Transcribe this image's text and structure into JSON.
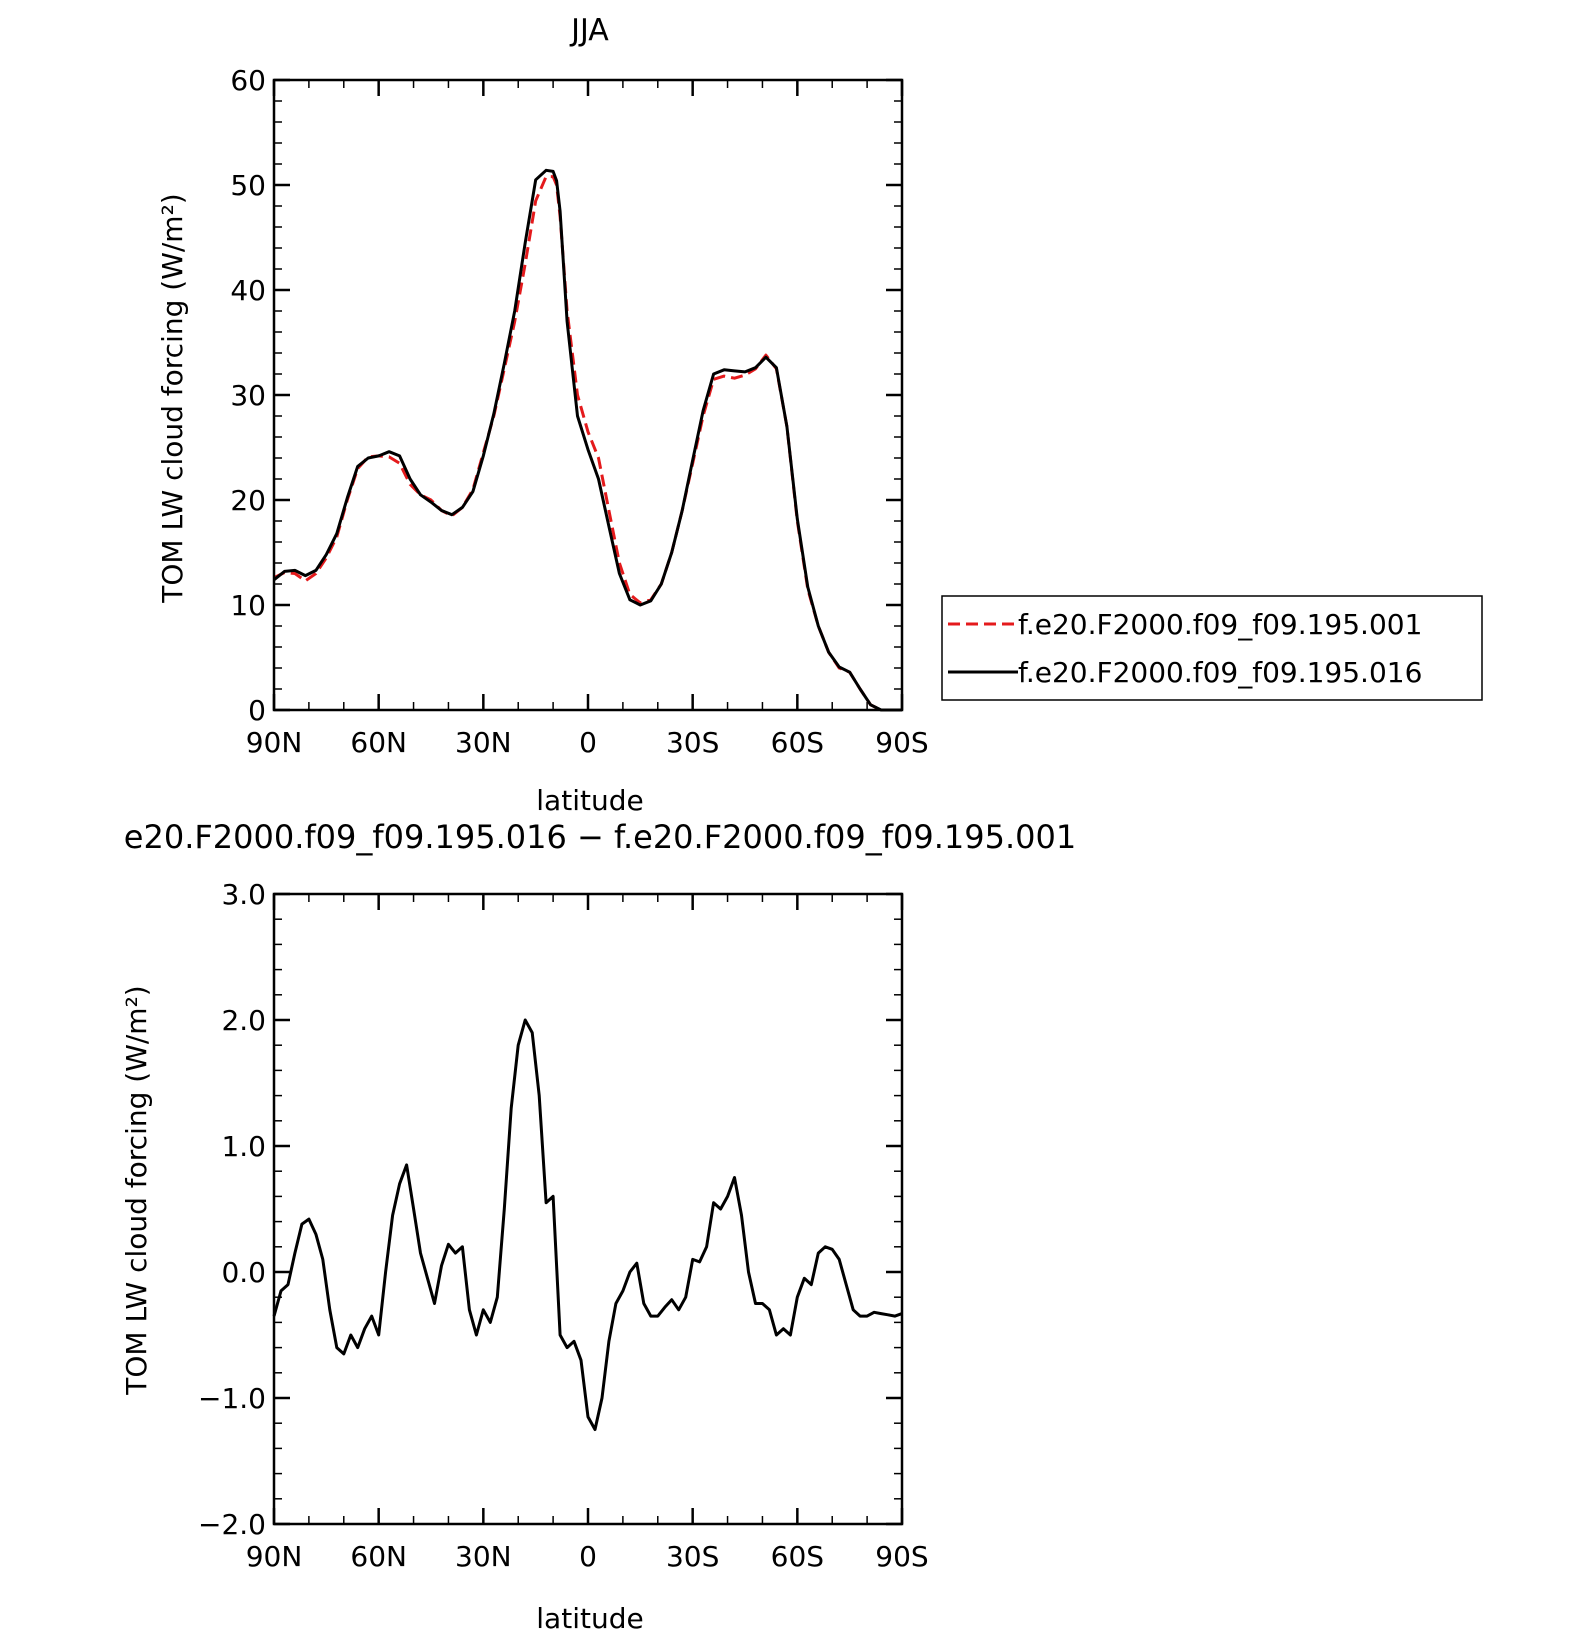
{
  "chart_data": [
    {
      "type": "line",
      "title": "JJA",
      "xlabel": "latitude",
      "ylabel": "TOM LW cloud forcing (W/m²)",
      "xlim": [
        90,
        -90
      ],
      "ylim": [
        0,
        60
      ],
      "x_ticks": [
        90,
        60,
        30,
        0,
        -30,
        -60,
        -90
      ],
      "x_tick_labels": [
        "90N",
        "60N",
        "30N",
        "0",
        "30S",
        "60S",
        "90S"
      ],
      "y_ticks": [
        0,
        10,
        20,
        30,
        40,
        50,
        60
      ],
      "y_tick_labels": [
        "0",
        "10",
        "20",
        "30",
        "40",
        "50",
        "60"
      ],
      "legend_position": "right",
      "series": [
        {
          "name": "f.e20.F2000.f09_f09.195.001",
          "color": "#e41a1c",
          "style": "dashed",
          "x": [
            90,
            87,
            84,
            81,
            78,
            75,
            72,
            69,
            66,
            63,
            60,
            57,
            54,
            51,
            48,
            45,
            42,
            39,
            36,
            33,
            30,
            27,
            24,
            21,
            18,
            15,
            12,
            10,
            9,
            8,
            6,
            3,
            0,
            -3,
            -6,
            -9,
            -12,
            -15,
            -18,
            -21,
            -24,
            -27,
            -30,
            -33,
            -36,
            -39,
            -42,
            -45,
            -48,
            -51,
            -54,
            -57,
            -60,
            -63,
            -66,
            -69,
            -72,
            -75,
            -78,
            -81,
            -84,
            -87,
            -90
          ],
          "y": [
            12.6,
            13.1,
            13.0,
            12.3,
            13.0,
            14.5,
            16.5,
            20.0,
            23.0,
            24.1,
            24.2,
            24.1,
            23.5,
            21.5,
            20.5,
            20.0,
            19.0,
            18.5,
            19.3,
            21.0,
            24.5,
            28.0,
            32.5,
            37.0,
            42.5,
            48.5,
            50.8,
            50.8,
            50.0,
            47.0,
            38.0,
            30.0,
            26.5,
            24.0,
            19.0,
            14.0,
            11.0,
            10.2,
            10.5,
            12.0,
            15.0,
            19.0,
            23.5,
            28.0,
            31.5,
            31.8,
            31.6,
            31.9,
            32.5,
            33.8,
            32.5,
            27.0,
            18.0,
            11.5,
            8.0,
            5.5,
            4.0,
            3.6,
            2.0,
            0.5,
            0.0,
            0.0,
            0.0
          ]
        },
        {
          "name": "f.e20.F2000.f09_f09.195.016",
          "color": "#000000",
          "style": "solid",
          "x": [
            90,
            87,
            84,
            81,
            78,
            75,
            72,
            69,
            66,
            63,
            60,
            57,
            54,
            51,
            48,
            45,
            42,
            39,
            36,
            33,
            30,
            27,
            24,
            21,
            18,
            15,
            12,
            10,
            9,
            8,
            6,
            3,
            0,
            -3,
            -6,
            -9,
            -12,
            -15,
            -18,
            -21,
            -24,
            -27,
            -30,
            -33,
            -36,
            -39,
            -42,
            -45,
            -48,
            -51,
            -54,
            -57,
            -60,
            -63,
            -66,
            -69,
            -72,
            -75,
            -78,
            -81,
            -84,
            -87,
            -90
          ],
          "y": [
            12.4,
            13.2,
            13.3,
            12.8,
            13.3,
            14.8,
            16.8,
            20.2,
            23.2,
            24.0,
            24.2,
            24.6,
            24.2,
            22.0,
            20.5,
            19.8,
            19.0,
            18.6,
            19.3,
            20.8,
            24.2,
            28.2,
            33.0,
            38.0,
            44.5,
            50.5,
            51.4,
            51.3,
            50.4,
            47.5,
            37.0,
            28.0,
            24.8,
            22.0,
            17.5,
            13.0,
            10.5,
            10.0,
            10.4,
            12.0,
            15.0,
            19.0,
            23.8,
            28.5,
            32.0,
            32.4,
            32.3,
            32.2,
            32.6,
            33.6,
            32.6,
            27.0,
            18.2,
            11.7,
            8.0,
            5.5,
            4.1,
            3.6,
            2.0,
            0.5,
            0.0,
            0.0,
            0.0
          ]
        }
      ]
    },
    {
      "type": "line",
      "title": "e20.F2000.f09_f09.195.016 − f.e20.F2000.f09_f09.195.001",
      "xlabel": "latitude",
      "ylabel": "TOM LW cloud forcing (W/m²)",
      "xlim": [
        90,
        -90
      ],
      "ylim": [
        -2,
        3
      ],
      "x_ticks": [
        90,
        60,
        30,
        0,
        -30,
        -60,
        -90
      ],
      "x_tick_labels": [
        "90N",
        "60N",
        "30N",
        "0",
        "30S",
        "60S",
        "90S"
      ],
      "y_ticks": [
        -2,
        -1,
        0,
        1,
        2,
        3
      ],
      "y_tick_labels": [
        "−2.0",
        "−1.0",
        "0.0",
        "1.0",
        "2.0",
        "3.0"
      ],
      "series": [
        {
          "color": "#000000",
          "style": "solid",
          "x": [
            90,
            88,
            86,
            84,
            82,
            80,
            78,
            76,
            74,
            72,
            70,
            68,
            66,
            64,
            62,
            60,
            58,
            56,
            54,
            52,
            50,
            48,
            46,
            44,
            42,
            40,
            38,
            36,
            34,
            32,
            30,
            28,
            26,
            24,
            22,
            20,
            18,
            16,
            14,
            12,
            10,
            8,
            6,
            4,
            2,
            0,
            -2,
            -4,
            -6,
            -8,
            -10,
            -12,
            -14,
            -16,
            -18,
            -20,
            -22,
            -24,
            -26,
            -28,
            -30,
            -32,
            -34,
            -36,
            -38,
            -40,
            -42,
            -44,
            -46,
            -48,
            -50,
            -52,
            -54,
            -56,
            -58,
            -60,
            -62,
            -64,
            -66,
            -68,
            -70,
            -72,
            -74,
            -76,
            -78,
            -80,
            -82,
            -84,
            -86,
            -88,
            -90
          ],
          "y": [
            -0.35,
            -0.15,
            -0.1,
            0.15,
            0.38,
            0.42,
            0.3,
            0.1,
            -0.3,
            -0.6,
            -0.65,
            -0.5,
            -0.6,
            -0.45,
            -0.35,
            -0.5,
            0.0,
            0.45,
            0.7,
            0.85,
            0.5,
            0.15,
            -0.05,
            -0.25,
            0.05,
            0.22,
            0.15,
            0.2,
            -0.3,
            -0.5,
            -0.3,
            -0.4,
            -0.2,
            0.5,
            1.3,
            1.8,
            2.0,
            1.9,
            1.4,
            0.55,
            0.6,
            -0.5,
            -0.6,
            -0.55,
            -0.7,
            -1.15,
            -1.25,
            -1.0,
            -0.55,
            -0.25,
            -0.15,
            0.0,
            0.07,
            -0.25,
            -0.35,
            -0.35,
            -0.28,
            -0.22,
            -0.3,
            -0.2,
            0.1,
            0.08,
            0.2,
            0.55,
            0.5,
            0.6,
            0.75,
            0.45,
            0.0,
            -0.25,
            -0.25,
            -0.3,
            -0.5,
            -0.45,
            -0.5,
            -0.2,
            -0.05,
            -0.1,
            0.15,
            0.2,
            0.18,
            0.1,
            -0.1,
            -0.3,
            -0.35,
            -0.35,
            -0.32,
            -0.33,
            -0.34,
            -0.35,
            -0.33
          ]
        }
      ]
    }
  ]
}
